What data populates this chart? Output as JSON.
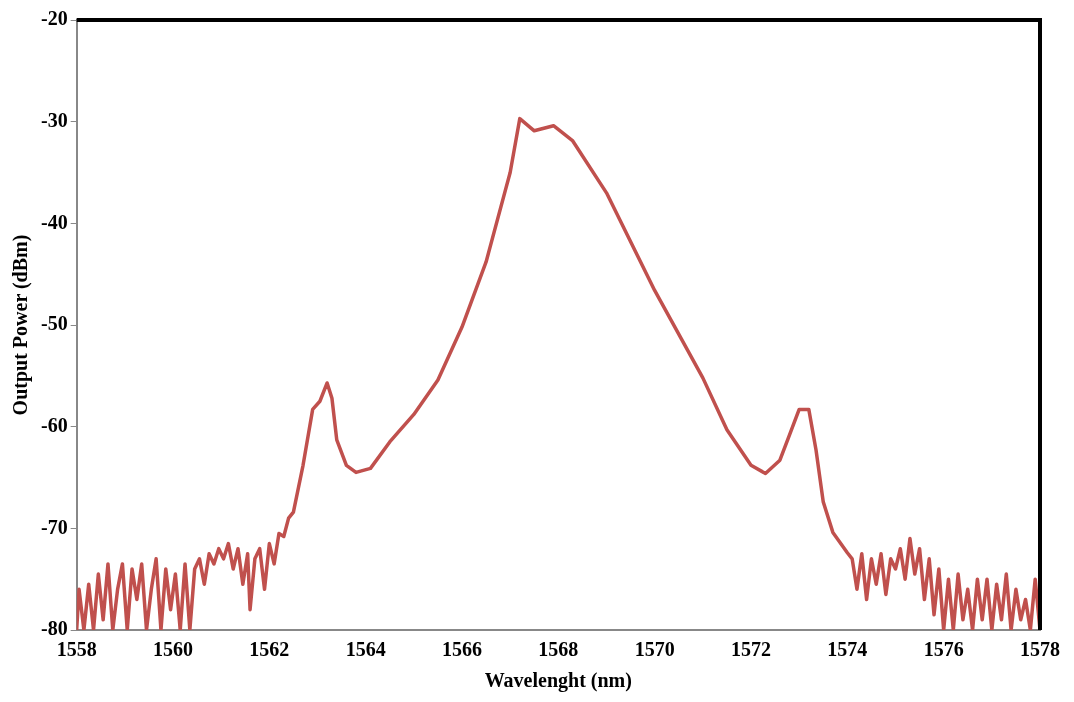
{
  "chart_data": {
    "type": "line",
    "xlabel": "Wavelenght (nm)",
    "ylabel": "Output Power (dBm)",
    "xlim": [
      1558,
      1578
    ],
    "xticks": [
      1558,
      1560,
      1562,
      1564,
      1566,
      1568,
      1570,
      1572,
      1574,
      1576,
      1578
    ],
    "ylim": [
      -80,
      -20
    ],
    "yticks": [
      -80,
      -70,
      -60,
      -50,
      -40,
      -30,
      -20
    ],
    "grid": false,
    "legend": false,
    "marker": "none",
    "line_style": "solid",
    "series": [
      {
        "color": "#c0504d",
        "x": [
          1558.0,
          1558.05,
          1558.15,
          1558.25,
          1558.35,
          1558.45,
          1558.55,
          1558.65,
          1558.75,
          1558.85,
          1558.95,
          1559.05,
          1559.15,
          1559.25,
          1559.35,
          1559.45,
          1559.55,
          1559.65,
          1559.75,
          1559.85,
          1559.95,
          1560.05,
          1560.15,
          1560.25,
          1560.35,
          1560.45,
          1560.55,
          1560.65,
          1560.75,
          1560.85,
          1560.95,
          1561.05,
          1561.15,
          1561.25,
          1561.35,
          1561.45,
          1561.55,
          1561.6,
          1561.7,
          1561.8,
          1561.9,
          1562.0,
          1562.1,
          1562.2,
          1562.3,
          1562.4,
          1562.5,
          1562.7,
          1562.9,
          1563.05,
          1563.2,
          1563.3,
          1563.4,
          1563.6,
          1563.8,
          1564.1,
          1564.5,
          1565.0,
          1565.5,
          1566.0,
          1566.5,
          1567.0,
          1567.2,
          1567.5,
          1567.9,
          1568.3,
          1569.0,
          1570.0,
          1571.0,
          1571.5,
          1572.0,
          1572.3,
          1572.6,
          1572.8,
          1573.0,
          1573.2,
          1573.35,
          1573.5,
          1573.7,
          1574.0,
          1574.1,
          1574.2,
          1574.3,
          1574.4,
          1574.5,
          1574.6,
          1574.7,
          1574.8,
          1574.9,
          1575.0,
          1575.1,
          1575.2,
          1575.3,
          1575.4,
          1575.5,
          1575.6,
          1575.7,
          1575.8,
          1575.9,
          1576.0,
          1576.1,
          1576.2,
          1576.3,
          1576.4,
          1576.5,
          1576.6,
          1576.7,
          1576.8,
          1576.9,
          1577.0,
          1577.1,
          1577.2,
          1577.3,
          1577.4,
          1577.5,
          1577.6,
          1577.7,
          1577.8,
          1577.9,
          1578.0
        ],
        "values": [
          -80,
          -76,
          -80,
          -75.5,
          -80,
          -74.5,
          -79,
          -73.5,
          -80,
          -76,
          -73.5,
          -80,
          -74,
          -77,
          -73.5,
          -80,
          -76,
          -73,
          -80,
          -74,
          -78,
          -74.5,
          -80,
          -73.5,
          -80,
          -74,
          -73,
          -75.5,
          -72.5,
          -73.5,
          -72,
          -73,
          -71.5,
          -74,
          -72,
          -75.5,
          -72.5,
          -78,
          -73,
          -72,
          -76,
          -71.5,
          -73.5,
          -70.5,
          -70.8,
          -69,
          -68.4,
          -63.8,
          -58.3,
          -57.5,
          -55.7,
          -57.2,
          -61.3,
          -63.8,
          -64.5,
          -64.1,
          -61.5,
          -58.8,
          -55.4,
          -50.2,
          -43.8,
          -35,
          -29.7,
          -30.9,
          -30.4,
          -31.9,
          -37,
          -46.6,
          -55.2,
          -60.3,
          -63.8,
          -64.6,
          -63.3,
          -60.8,
          -58.3,
          -58.3,
          -62.3,
          -67.4,
          -70.4,
          -72.4,
          -73,
          -76,
          -72.5,
          -77,
          -73,
          -75.5,
          -72.5,
          -76.5,
          -73,
          -74,
          -72,
          -75,
          -71,
          -74.5,
          -72,
          -77,
          -73,
          -78.5,
          -74,
          -80,
          -75,
          -80,
          -74.5,
          -79,
          -76,
          -80,
          -75,
          -79,
          -75,
          -80,
          -75.5,
          -79,
          -74.5,
          -80,
          -76,
          -79,
          -77,
          -80,
          -75,
          -80
        ]
      }
    ]
  }
}
